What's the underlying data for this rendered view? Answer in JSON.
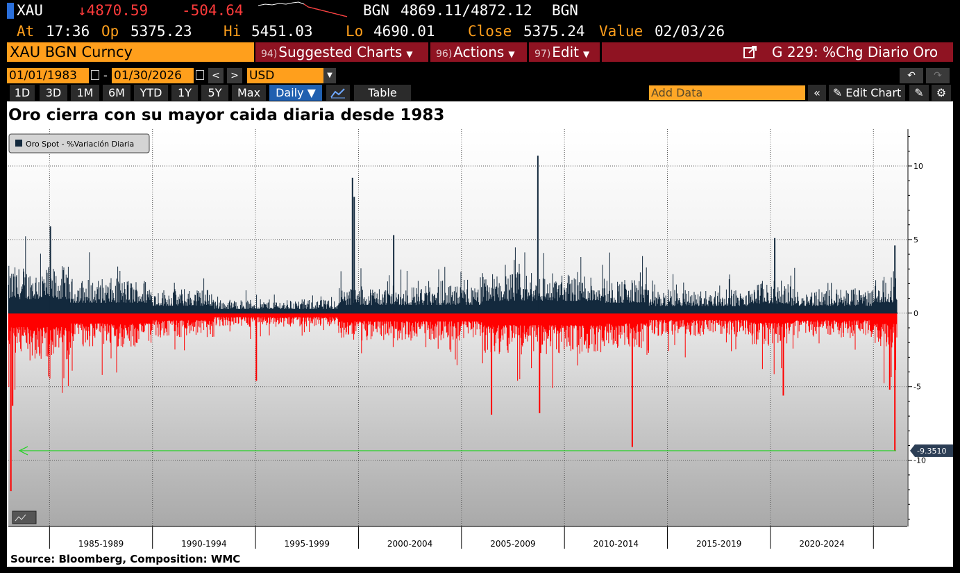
{
  "quote": {
    "ticker": "XAU",
    "last": "↓4870.59",
    "change": "-504.64",
    "bid_source": "BGN",
    "bid_ask": "4869.11/4872.12",
    "ask_source": "BGN",
    "at_label": "At",
    "at_value": "17:36",
    "open_label": "Op",
    "open_value": "5375.23",
    "high_label": "Hi",
    "high_value": "5451.03",
    "low_label": "Lo",
    "low_value": "4690.01",
    "close_label": "Close",
    "close_value": "5375.24",
    "value_label": "Value",
    "value_date": "02/03/26"
  },
  "header": {
    "security": "XAU BGN Curncy",
    "menus": [
      {
        "num": "94)",
        "label": "Suggested Charts"
      },
      {
        "num": "96)",
        "label": "Actions"
      },
      {
        "num": "97)",
        "label": "Edit"
      }
    ],
    "function_title": "G 229: %Chg Diario Oro"
  },
  "range": {
    "start": "01/01/1983",
    "dash": "-",
    "end": "01/30/2026",
    "prev": "<",
    "next": ">",
    "currency": "USD"
  },
  "toolbar": {
    "periods": [
      "1D",
      "3D",
      "1M",
      "6M",
      "YTD",
      "1Y",
      "5Y",
      "Max"
    ],
    "frequency": "Daily ▼",
    "table_label": "Table",
    "add_data_placeholder": "Add Data",
    "edit_chart_label": "Edit Chart"
  },
  "chart_data": {
    "type": "bar",
    "title": "Oro cierra con su mayor caida diaria desde 1983",
    "source": "Source: Bloomberg, Composition: WMC",
    "series": [
      {
        "name": "Oro Spot - %Variación Diaria"
      }
    ],
    "colors": {
      "positive": "#13293d",
      "negative": "#ff0000",
      "reference": "#21d321"
    },
    "legend_position": "top-left",
    "y_ticks": [
      10,
      5,
      0,
      -5,
      -10
    ],
    "ylim": [
      -14.5,
      12.5
    ],
    "x_categories": [
      "1985-1989",
      "1990-1994",
      "1995-1999",
      "2000-2004",
      "2005-2009",
      "2010-2014",
      "2015-2019",
      "2020-2024"
    ],
    "last_value": -9.351,
    "last_value_label": "-9.3510",
    "extremes": [
      {
        "date": "1983-02",
        "value": -12.1
      },
      {
        "date": "1983-03",
        "value": -6.3
      },
      {
        "date": "1985-01",
        "value": 5.9
      },
      {
        "date": "1995-01",
        "value": -4.6
      },
      {
        "date": "1999-09",
        "value": 9.2
      },
      {
        "date": "1999-10",
        "value": 7.9
      },
      {
        "date": "2001-09",
        "value": 5.3
      },
      {
        "date": "2006-06",
        "value": -6.9
      },
      {
        "date": "2008-09",
        "value": 10.7
      },
      {
        "date": "2008-10",
        "value": -6.8
      },
      {
        "date": "2013-04",
        "value": -9.1
      },
      {
        "date": "2020-03",
        "value": 5.1
      },
      {
        "date": "2020-08",
        "value": -5.6
      },
      {
        "date": "2025-10",
        "value": -5.2
      },
      {
        "date": "2026-01",
        "value": 4.6
      },
      {
        "date": "2026-01",
        "value": -9.351
      }
    ]
  }
}
